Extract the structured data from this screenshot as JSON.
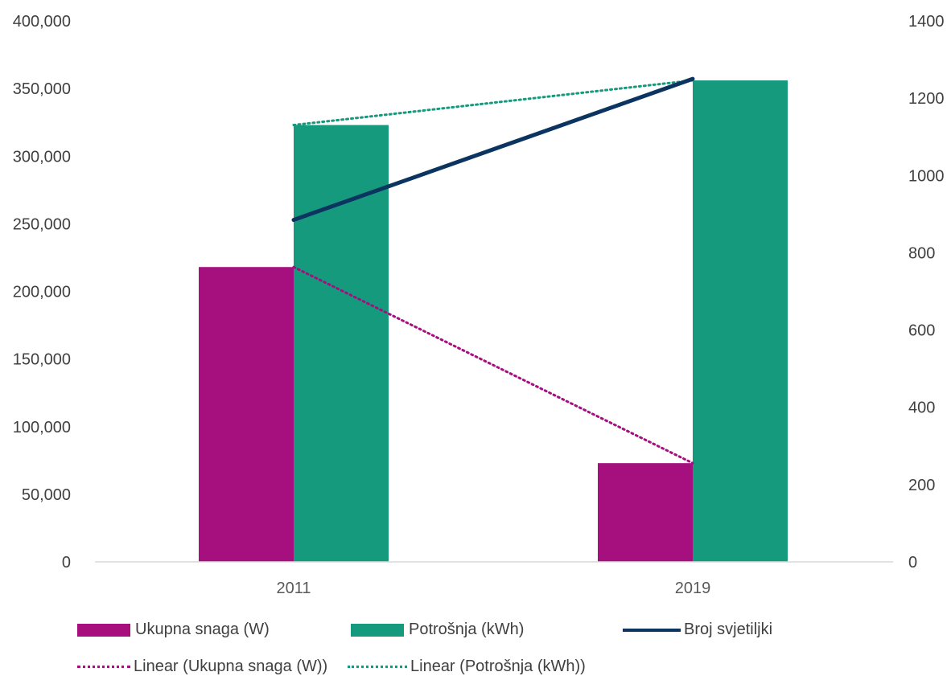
{
  "chart_data": {
    "type": "bar",
    "categories": [
      "2011",
      "2019"
    ],
    "y_left": {
      "ylim": [
        0,
        400000
      ],
      "ticks": [
        "0",
        "50,000",
        "100,000",
        "150,000",
        "200,000",
        "250,000",
        "300,000",
        "350,000",
        "400,000"
      ]
    },
    "y_right": {
      "ylim": [
        0,
        1400
      ],
      "ticks": [
        "0",
        "200",
        "400",
        "600",
        "800",
        "1000",
        "1200",
        "1400"
      ]
    },
    "series": [
      {
        "name": "Ukupna snaga (W)",
        "type": "bar",
        "axis": "left",
        "color": "#A50F7E",
        "values": [
          218000,
          73000
        ]
      },
      {
        "name": "Potrošnja (kWh)",
        "type": "bar",
        "axis": "left",
        "color": "#169A7E",
        "values": [
          323000,
          356000
        ]
      },
      {
        "name": "Broj svjetiljki",
        "type": "line",
        "axis": "right",
        "color": "#0B3460",
        "values": [
          885,
          1250
        ]
      },
      {
        "name": "Linear (Ukupna snaga (W))",
        "type": "trendline",
        "axis": "left",
        "color": "#A50F7E",
        "of_series": "Ukupna snaga (W)"
      },
      {
        "name": "Linear (Potrošnja (kWh))",
        "type": "trendline",
        "axis": "left",
        "color": "#169A7E",
        "of_series": "Potrošnja (kWh)"
      }
    ],
    "grid": false,
    "legend_position": "bottom"
  }
}
